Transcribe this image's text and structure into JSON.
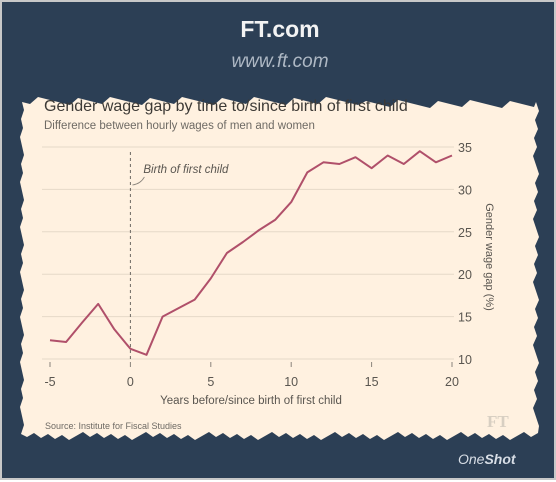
{
  "site": {
    "title": "FT.com",
    "url": "www.ft.com"
  },
  "colors": {
    "background": "#2c3f55",
    "paper": "#fff1e0",
    "line": "#b0506a",
    "grid": "#e6d9c8"
  },
  "chart_data": {
    "type": "line",
    "title": "Gender wage gap by time to/since birth of first child",
    "subtitle": "Difference between hourly wages of men and women",
    "xlabel": "Years before/since birth of first child",
    "ylabel": "Gender wage gap (%)",
    "x_ticks": [
      "-5",
      "0",
      "5",
      "10",
      "15",
      "20"
    ],
    "y_ticks": [
      "10",
      "15",
      "20",
      "25",
      "30",
      "35"
    ],
    "xlim": [
      -5,
      20
    ],
    "ylim": [
      10,
      35
    ],
    "y_axis_side": "right",
    "grid": "horizontal",
    "x": [
      -5,
      -4,
      -3,
      -2,
      -1,
      0,
      1,
      2,
      3,
      4,
      5,
      6,
      7,
      8,
      9,
      10,
      11,
      12,
      13,
      14,
      15,
      16,
      17,
      18,
      19,
      20
    ],
    "series": [
      {
        "values": [
          12.2,
          12.0,
          14.3,
          16.5,
          13.5,
          11.2,
          10.5,
          15.0,
          16.0,
          17.0,
          19.5,
          22.5,
          23.8,
          25.2,
          26.4,
          28.5,
          32.0,
          33.2,
          33.0,
          33.8,
          32.5,
          34.0,
          33.0,
          34.5,
          33.2,
          34.0
        ]
      }
    ],
    "annotations": [
      {
        "text": "Birth of first child",
        "x": 0
      }
    ],
    "source": "Source: Institute for Fiscal Studies",
    "logo": "FT"
  },
  "watermark": {
    "brand_prefix": "One",
    "brand_suffix": "Shot"
  }
}
